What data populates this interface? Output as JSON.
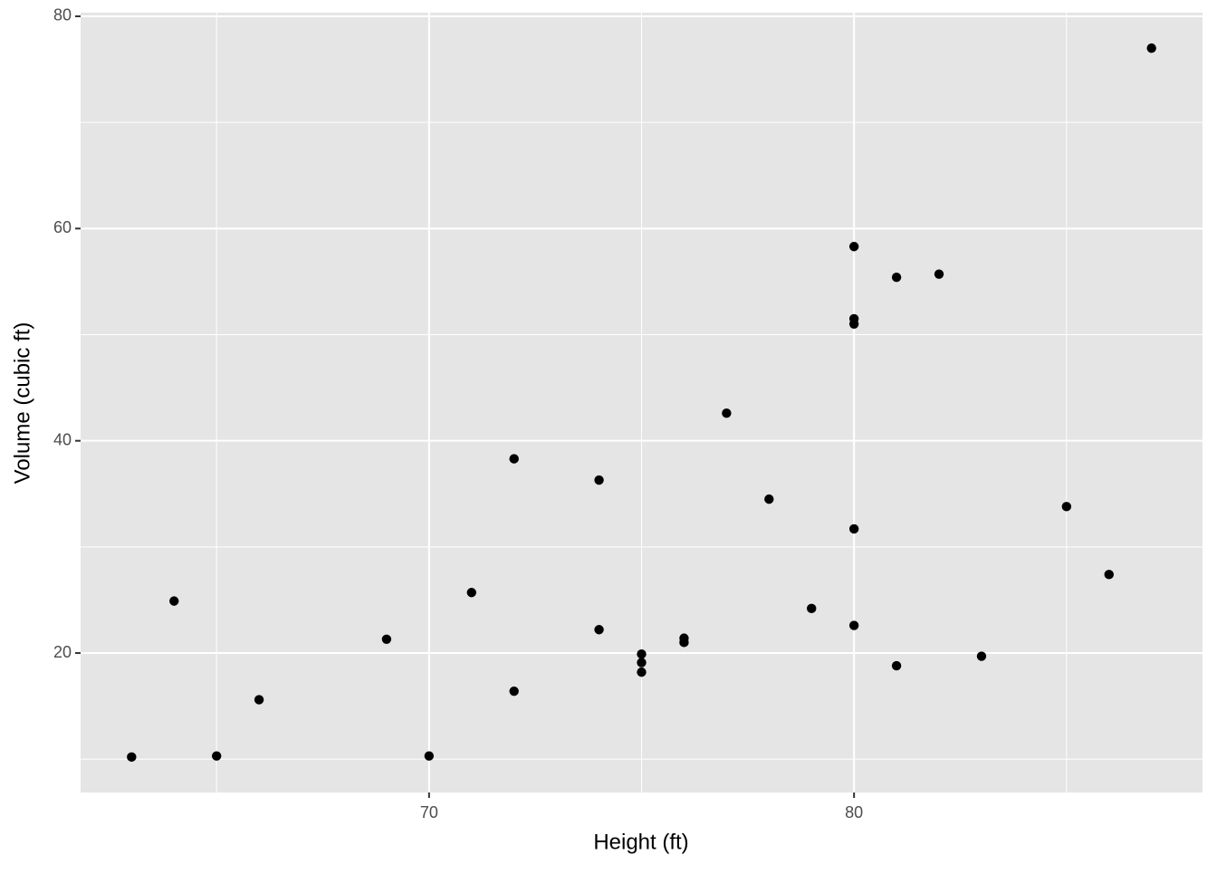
{
  "chart_data": {
    "type": "scatter",
    "xlabel": "Height (ft)",
    "ylabel": "Volume (cubic ft)",
    "x": [
      70,
      65,
      63,
      72,
      81,
      83,
      66,
      75,
      80,
      75,
      79,
      76,
      76,
      69,
      75,
      74,
      85,
      86,
      71,
      64,
      78,
      80,
      74,
      72,
      77,
      81,
      82,
      80,
      80,
      80,
      87
    ],
    "series": [
      {
        "color": "#000000",
        "values": [
          10.3,
          10.3,
          10.2,
          16.4,
          18.8,
          19.7,
          15.6,
          18.2,
          22.6,
          19.9,
          24.2,
          21.0,
          21.4,
          21.3,
          19.1,
          22.2,
          33.8,
          27.4,
          25.7,
          24.9,
          34.5,
          31.7,
          36.3,
          38.3,
          42.6,
          55.4,
          55.7,
          58.3,
          51.5,
          51.0,
          77.0
        ]
      }
    ],
    "xlim": [
      61.8,
      88.2
    ],
    "ylim": [
      6.86,
      80.34
    ],
    "xticks": [
      70,
      80
    ],
    "yticks": [
      20,
      40,
      60,
      80
    ],
    "xminor": [
      65,
      75,
      85
    ],
    "yminor": [
      10,
      30,
      50,
      70
    ],
    "grid": true
  }
}
